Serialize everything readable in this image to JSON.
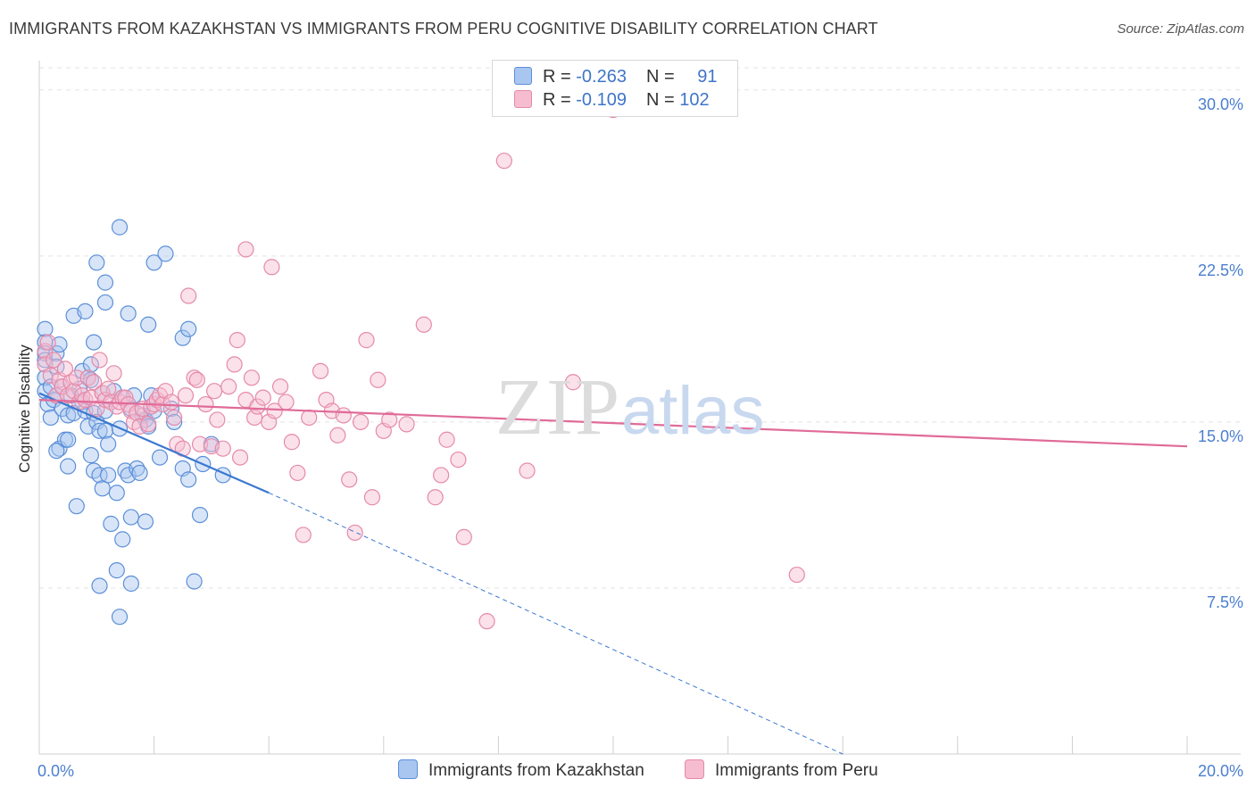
{
  "header": {
    "title": "IMMIGRANTS FROM KAZAKHSTAN VS IMMIGRANTS FROM PERU COGNITIVE DISABILITY CORRELATION CHART",
    "source": "Source: ZipAtlas.com"
  },
  "watermark": {
    "zip": "ZIP",
    "atlas": "atlas"
  },
  "legend": {
    "series1": {
      "r_label": "R = ",
      "r_value": "-0.263",
      "n_label": "N = ",
      "n_value": "91"
    },
    "series2": {
      "r_label": "R = ",
      "r_value": "-0.109",
      "n_label": "N = ",
      "n_value": "102"
    }
  },
  "colors": {
    "kazakhstan_fill": "#a9c6f0",
    "kazakhstan_stroke": "#5b8fd8",
    "kazakhstan_line": "#3a78d0",
    "peru_fill": "#f6bcd0",
    "peru_stroke": "#e58aa9",
    "peru_line": "#e06b98",
    "tick_text": "#4a7fd0",
    "grid": "#e3e3e3"
  },
  "chart_data": {
    "type": "scatter",
    "title": "IMMIGRANTS FROM KAZAKHSTAN VS IMMIGRANTS FROM PERU COGNITIVE DISABILITY CORRELATION CHART",
    "xlabel": "",
    "ylabel": "Cognitive Disability",
    "xlim": [
      0,
      20
    ],
    "ylim": [
      0,
      31
    ],
    "x_ticks": [
      "0.0%",
      "20.0%"
    ],
    "y_ticks": [
      {
        "value": 7.5,
        "label": "7.5%"
      },
      {
        "value": 15.0,
        "label": "15.0%"
      },
      {
        "value": 22.5,
        "label": "22.5%"
      },
      {
        "value": 30.0,
        "label": "30.0%"
      }
    ],
    "grid": true,
    "legend_position": "top-center",
    "series": [
      {
        "name": "Immigrants from Kazakhstan",
        "r": -0.263,
        "n": 91,
        "trend": {
          "x": [
            0.0,
            4.0
          ],
          "y": [
            16.3,
            11.8
          ]
        },
        "trend_extension": {
          "x": [
            4.0,
            14.0
          ],
          "y": [
            11.8,
            0.0
          ]
        },
        "points": [
          [
            0.1,
            19.2
          ],
          [
            0.1,
            18.6
          ],
          [
            0.1,
            18.1
          ],
          [
            0.1,
            17.8
          ],
          [
            0.1,
            17.0
          ],
          [
            0.1,
            16.4
          ],
          [
            0.15,
            15.8
          ],
          [
            0.2,
            16.6
          ],
          [
            0.2,
            15.2
          ],
          [
            0.25,
            16.0
          ],
          [
            0.3,
            18.1
          ],
          [
            0.3,
            17.5
          ],
          [
            0.3,
            16.2
          ],
          [
            0.35,
            13.8
          ],
          [
            0.35,
            18.5
          ],
          [
            0.4,
            15.6
          ],
          [
            0.4,
            16.6
          ],
          [
            0.45,
            14.2
          ],
          [
            0.5,
            14.2
          ],
          [
            0.5,
            13.0
          ],
          [
            0.5,
            15.3
          ],
          [
            0.55,
            16.2
          ],
          [
            0.6,
            19.8
          ],
          [
            0.6,
            15.4
          ],
          [
            0.65,
            11.2
          ],
          [
            0.7,
            16.5
          ],
          [
            0.75,
            17.3
          ],
          [
            0.75,
            15.9
          ],
          [
            0.8,
            20.0
          ],
          [
            0.8,
            15.5
          ],
          [
            0.85,
            17.0
          ],
          [
            0.85,
            14.8
          ],
          [
            0.9,
            17.6
          ],
          [
            0.9,
            16.9
          ],
          [
            0.9,
            13.5
          ],
          [
            0.95,
            18.6
          ],
          [
            0.95,
            15.4
          ],
          [
            0.95,
            12.8
          ],
          [
            1.0,
            22.2
          ],
          [
            1.0,
            15.0
          ],
          [
            1.05,
            14.6
          ],
          [
            1.05,
            12.6
          ],
          [
            1.1,
            16.3
          ],
          [
            1.1,
            12.0
          ],
          [
            1.15,
            21.3
          ],
          [
            1.15,
            20.4
          ],
          [
            1.15,
            15.5
          ],
          [
            1.15,
            14.6
          ],
          [
            1.2,
            14.0
          ],
          [
            1.2,
            12.6
          ],
          [
            1.25,
            10.4
          ],
          [
            1.3,
            16.4
          ],
          [
            1.35,
            11.8
          ],
          [
            1.35,
            8.3
          ],
          [
            1.4,
            23.8
          ],
          [
            1.4,
            14.7
          ],
          [
            1.4,
            6.2
          ],
          [
            1.45,
            16.1
          ],
          [
            1.5,
            12.8
          ],
          [
            1.55,
            12.6
          ],
          [
            1.55,
            19.9
          ],
          [
            1.6,
            15.6
          ],
          [
            1.6,
            10.7
          ],
          [
            1.6,
            7.7
          ],
          [
            1.65,
            16.2
          ],
          [
            1.7,
            12.9
          ],
          [
            1.75,
            12.7
          ],
          [
            1.8,
            15.3
          ],
          [
            1.85,
            15.1
          ],
          [
            1.85,
            10.5
          ],
          [
            1.9,
            19.4
          ],
          [
            1.9,
            14.8
          ],
          [
            1.95,
            16.2
          ],
          [
            2.0,
            22.2
          ],
          [
            2.0,
            15.5
          ],
          [
            2.1,
            13.4
          ],
          [
            2.2,
            22.6
          ],
          [
            2.3,
            15.6
          ],
          [
            2.35,
            15.0
          ],
          [
            2.5,
            18.8
          ],
          [
            2.5,
            12.9
          ],
          [
            2.6,
            19.2
          ],
          [
            2.6,
            12.4
          ],
          [
            2.7,
            7.8
          ],
          [
            2.8,
            10.8
          ],
          [
            2.85,
            13.1
          ],
          [
            3.0,
            14.0
          ],
          [
            3.2,
            12.6
          ],
          [
            0.3,
            13.7
          ],
          [
            1.05,
            7.6
          ],
          [
            1.45,
            9.7
          ]
        ]
      },
      {
        "name": "Immigrants from Peru",
        "r": -0.109,
        "n": 102,
        "trend": {
          "x": [
            0.0,
            20.0
          ],
          "y": [
            16.0,
            13.9
          ]
        },
        "points": [
          [
            0.1,
            18.2
          ],
          [
            0.1,
            17.6
          ],
          [
            0.15,
            18.6
          ],
          [
            0.2,
            17.1
          ],
          [
            0.25,
            17.8
          ],
          [
            0.3,
            16.2
          ],
          [
            0.35,
            16.9
          ],
          [
            0.4,
            16.6
          ],
          [
            0.45,
            17.4
          ],
          [
            0.5,
            16.2
          ],
          [
            0.55,
            16.8
          ],
          [
            0.6,
            16.4
          ],
          [
            0.65,
            17.0
          ],
          [
            0.7,
            15.9
          ],
          [
            0.75,
            16.2
          ],
          [
            0.8,
            16.0
          ],
          [
            0.85,
            17.0
          ],
          [
            0.9,
            16.1
          ],
          [
            0.95,
            16.8
          ],
          [
            1.0,
            15.6
          ],
          [
            1.05,
            17.8
          ],
          [
            1.1,
            16.3
          ],
          [
            1.15,
            16.0
          ],
          [
            1.2,
            16.5
          ],
          [
            1.25,
            15.9
          ],
          [
            1.3,
            17.2
          ],
          [
            1.35,
            15.7
          ],
          [
            1.4,
            15.9
          ],
          [
            1.45,
            16.1
          ],
          [
            1.5,
            16.1
          ],
          [
            1.55,
            15.8
          ],
          [
            1.6,
            15.5
          ],
          [
            1.65,
            15.0
          ],
          [
            1.7,
            15.4
          ],
          [
            1.75,
            14.8
          ],
          [
            1.8,
            15.6
          ],
          [
            1.9,
            14.9
          ],
          [
            1.95,
            15.7
          ],
          [
            2.0,
            15.8
          ],
          [
            2.05,
            16.0
          ],
          [
            2.1,
            16.2
          ],
          [
            2.15,
            15.8
          ],
          [
            2.2,
            16.4
          ],
          [
            2.3,
            15.9
          ],
          [
            2.35,
            15.2
          ],
          [
            2.4,
            14.0
          ],
          [
            2.5,
            13.8
          ],
          [
            2.55,
            16.2
          ],
          [
            2.6,
            20.7
          ],
          [
            2.7,
            17.0
          ],
          [
            2.75,
            16.9
          ],
          [
            2.8,
            14.0
          ],
          [
            2.9,
            15.8
          ],
          [
            3.0,
            13.9
          ],
          [
            3.05,
            16.4
          ],
          [
            3.1,
            15.1
          ],
          [
            3.2,
            13.8
          ],
          [
            3.3,
            16.6
          ],
          [
            3.4,
            17.6
          ],
          [
            3.45,
            18.7
          ],
          [
            3.5,
            13.4
          ],
          [
            3.6,
            16.0
          ],
          [
            3.7,
            17.0
          ],
          [
            3.75,
            15.2
          ],
          [
            3.8,
            15.7
          ],
          [
            3.9,
            16.1
          ],
          [
            4.0,
            15.0
          ],
          [
            4.05,
            22.0
          ],
          [
            4.1,
            15.5
          ],
          [
            4.2,
            16.6
          ],
          [
            4.3,
            15.9
          ],
          [
            4.4,
            14.1
          ],
          [
            4.5,
            12.7
          ],
          [
            4.6,
            9.9
          ],
          [
            4.7,
            15.2
          ],
          [
            4.9,
            17.3
          ],
          [
            5.0,
            16.0
          ],
          [
            5.1,
            15.5
          ],
          [
            5.2,
            14.4
          ],
          [
            5.3,
            15.3
          ],
          [
            5.4,
            12.4
          ],
          [
            5.5,
            10.0
          ],
          [
            5.6,
            15.0
          ],
          [
            5.7,
            18.7
          ],
          [
            5.8,
            11.6
          ],
          [
            5.9,
            16.9
          ],
          [
            6.0,
            14.6
          ],
          [
            6.1,
            15.1
          ],
          [
            6.4,
            14.9
          ],
          [
            6.7,
            19.4
          ],
          [
            6.9,
            11.6
          ],
          [
            7.0,
            12.6
          ],
          [
            7.1,
            14.2
          ],
          [
            7.3,
            13.3
          ],
          [
            7.4,
            9.8
          ],
          [
            8.1,
            26.8
          ],
          [
            8.5,
            12.8
          ],
          [
            9.3,
            16.8
          ],
          [
            10.0,
            29.1
          ],
          [
            13.2,
            8.1
          ],
          [
            7.8,
            6.0
          ],
          [
            3.6,
            22.8
          ]
        ]
      }
    ]
  },
  "bottom_legend": {
    "item1": "Immigrants from Kazakhstan",
    "item2": "Immigrants from Peru"
  }
}
